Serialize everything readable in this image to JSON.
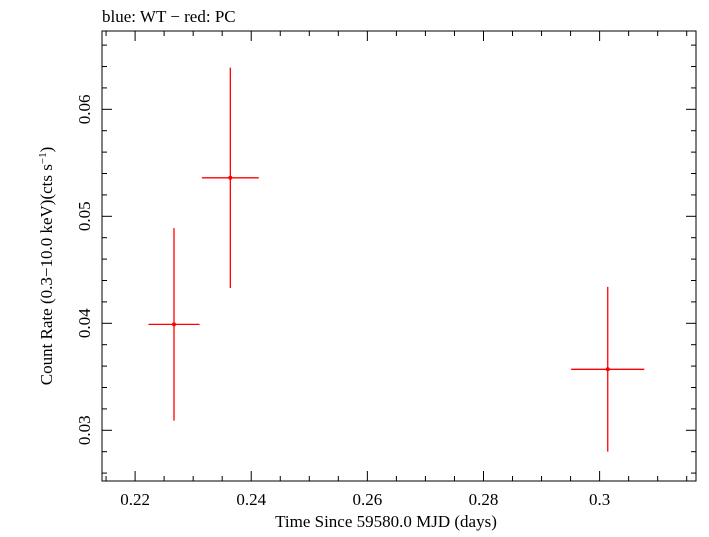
{
  "chart_data": {
    "type": "scatter",
    "title": "blue: WT − red: PC",
    "xlabel": "Time Since 59580.0 MJD (days)",
    "ylabel": "Count Rate (0.3−10.0 keV)(cts s",
    "ylabel_sup": "−1",
    "ylabel_close": ")",
    "xlim": [
      0.2143,
      0.3166
    ],
    "ylim": [
      0.02526,
      0.06732
    ],
    "x_ticks": [
      0.22,
      0.24,
      0.26,
      0.28,
      0.3
    ],
    "x_tick_labels": [
      "0.22",
      "0.24",
      "0.26",
      "0.28",
      "0.3"
    ],
    "y_ticks": [
      0.03,
      0.04,
      0.05,
      0.06
    ],
    "y_tick_labels": [
      "0.03",
      "0.04",
      "0.05",
      "0.06"
    ],
    "grid": false,
    "series": [
      {
        "color": "#ff0000",
        "points": [
          {
            "x": 0.2267,
            "y": 0.0399,
            "xerr": 0.0044,
            "yerr": 0.009
          },
          {
            "x": 0.2364,
            "y": 0.0536,
            "xerr": 0.0049,
            "yerr": 0.0103
          },
          {
            "x": 0.3014,
            "y": 0.0357,
            "xerr": 0.0063,
            "yerr": 0.0077
          }
        ]
      }
    ]
  }
}
